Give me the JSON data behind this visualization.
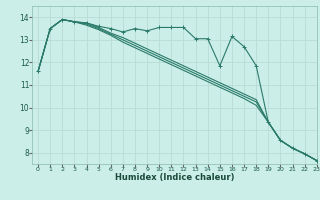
{
  "title": "",
  "xlabel": "Humidex (Indice chaleur)",
  "bg_color": "#cceee8",
  "grid_color": "#b8ddd6",
  "line_color": "#2a7a6a",
  "xlim": [
    -0.5,
    23
  ],
  "ylim": [
    7.5,
    14.5
  ],
  "yticks": [
    8,
    9,
    10,
    11,
    12,
    13,
    14
  ],
  "xticks": [
    0,
    1,
    2,
    3,
    4,
    5,
    6,
    7,
    8,
    9,
    10,
    11,
    12,
    13,
    14,
    15,
    16,
    17,
    18,
    19,
    20,
    21,
    22,
    23
  ],
  "x_main": [
    0,
    1,
    2,
    3,
    4,
    5,
    6,
    7,
    8,
    9,
    10,
    11,
    12,
    13,
    14,
    15,
    16,
    17,
    18,
    19,
    20,
    21,
    22,
    23
  ],
  "line1_y": [
    11.6,
    13.5,
    13.9,
    13.8,
    13.75,
    13.6,
    13.5,
    13.35,
    13.5,
    13.4,
    13.55,
    13.55,
    13.55,
    13.05,
    13.05,
    11.85,
    13.15,
    12.7,
    11.85,
    9.35,
    8.55,
    8.2,
    7.95,
    7.65
  ],
  "line2_y": [
    11.6,
    13.5,
    13.9,
    13.8,
    13.75,
    13.55,
    13.3,
    13.1,
    12.85,
    12.6,
    12.35,
    12.1,
    11.85,
    11.6,
    11.35,
    11.1,
    10.85,
    10.6,
    10.35,
    9.35,
    8.55,
    8.2,
    7.95,
    7.65
  ],
  "line3_y": [
    11.6,
    13.5,
    13.9,
    13.8,
    13.7,
    13.5,
    13.25,
    13.0,
    12.75,
    12.5,
    12.25,
    12.0,
    11.75,
    11.5,
    11.25,
    11.0,
    10.75,
    10.5,
    10.25,
    9.35,
    8.55,
    8.2,
    7.95,
    7.65
  ],
  "line4_y": [
    11.6,
    13.5,
    13.9,
    13.8,
    13.65,
    13.45,
    13.2,
    12.9,
    12.65,
    12.4,
    12.15,
    11.9,
    11.65,
    11.4,
    11.15,
    10.9,
    10.65,
    10.4,
    10.1,
    9.35,
    8.55,
    8.2,
    7.95,
    7.65
  ]
}
